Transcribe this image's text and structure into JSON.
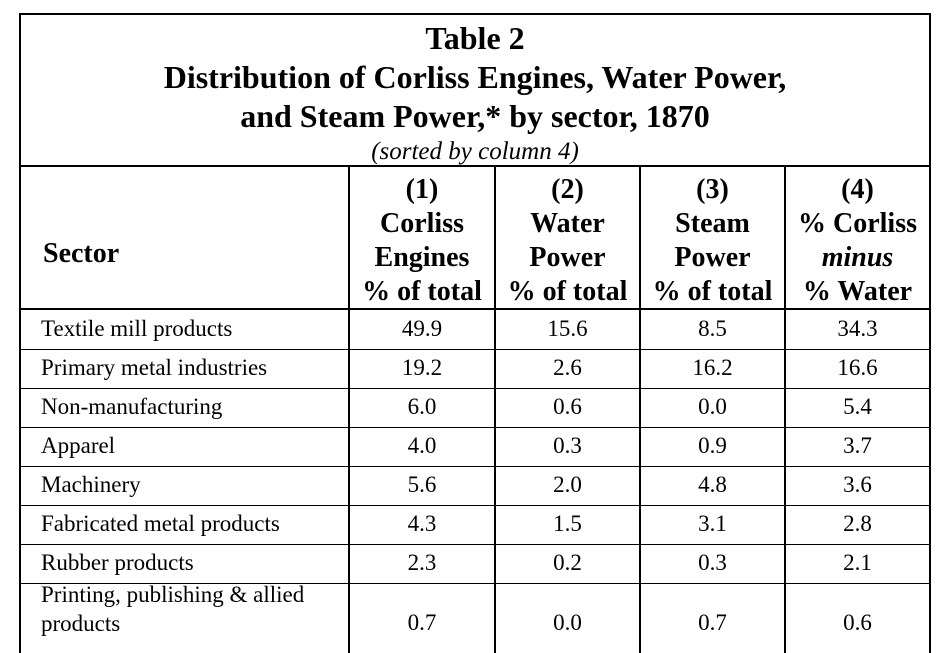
{
  "table": {
    "title_line1": "Table 2",
    "title_line2": "Distribution of Corliss Engines, Water Power,",
    "title_line3": "and Steam Power,* by sector, 1870",
    "subtitle": "(sorted by column 4)",
    "header": {
      "sector": "Sector",
      "col1": {
        "num": "(1)",
        "l1": "Corliss",
        "l2": "Engines",
        "l3": "% of total"
      },
      "col2": {
        "num": "(2)",
        "l1": "Water",
        "l2": "Power",
        "l3": "% of total"
      },
      "col3": {
        "num": "(3)",
        "l1": "Steam",
        "l2": "Power",
        "l3": "% of total"
      },
      "col4": {
        "num": "(4)",
        "l1": "% Corliss",
        "l2": "minus",
        "l3": "% Water"
      }
    },
    "rows": [
      {
        "sector": "Textile mill products",
        "c1": "49.9",
        "c2": "15.6",
        "c3": "8.5",
        "c4": "34.3"
      },
      {
        "sector": "Primary metal industries",
        "c1": "19.2",
        "c2": "2.6",
        "c3": "16.2",
        "c4": "16.6"
      },
      {
        "sector": "Non-manufacturing",
        "c1": "6.0",
        "c2": "0.6",
        "c3": "0.0",
        "c4": "5.4"
      },
      {
        "sector": "Apparel",
        "c1": "4.0",
        "c2": "0.3",
        "c3": "0.9",
        "c4": "3.7"
      },
      {
        "sector": "Machinery",
        "c1": "5.6",
        "c2": "2.0",
        "c3": "4.8",
        "c4": "3.6"
      },
      {
        "sector": "Fabricated metal products",
        "c1": "4.3",
        "c2": "1.5",
        "c3": "3.1",
        "c4": "2.8"
      },
      {
        "sector": "Rubber products",
        "c1": "2.3",
        "c2": "0.2",
        "c3": "0.3",
        "c4": "2.1"
      },
      {
        "sector_l1": "Printing, publishing & allied",
        "sector_l2": "products",
        "c1": "0.7",
        "c2": "0.0",
        "c3": "0.7",
        "c4": "0.6"
      }
    ]
  }
}
